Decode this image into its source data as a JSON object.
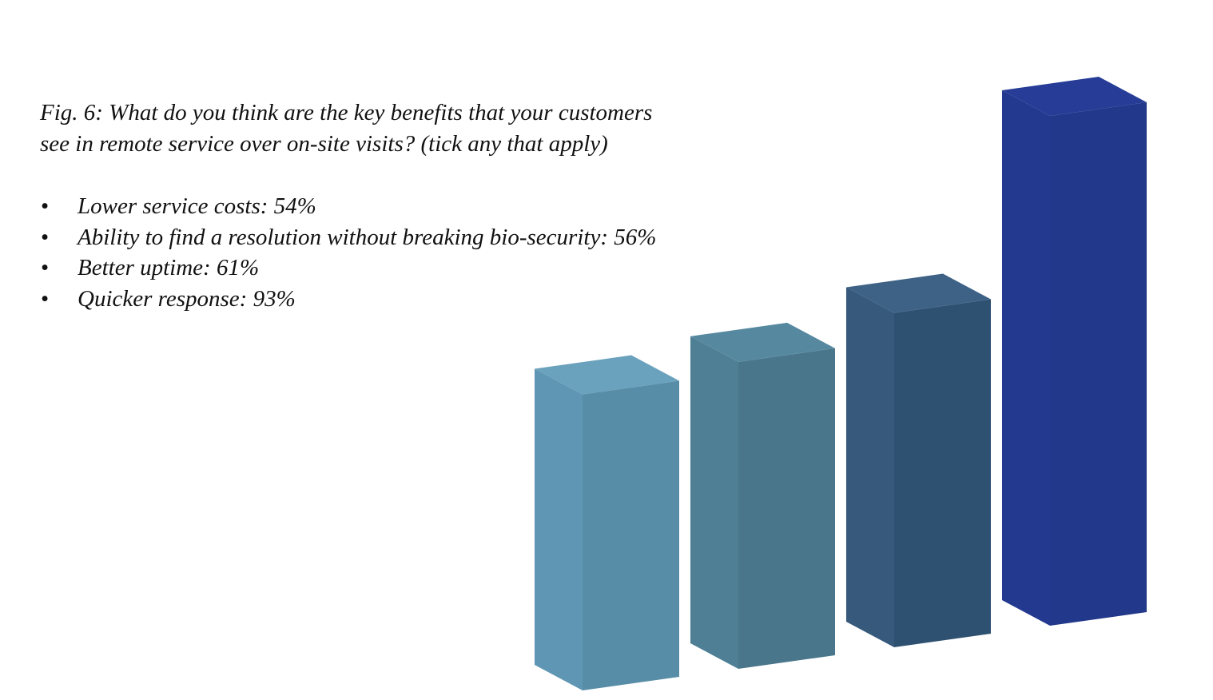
{
  "caption": {
    "line1": "Fig. 6: What do you think are the key benefits that your customers",
    "line2": "see in remote service over on-site visits? (tick any that apply)"
  },
  "bullets": [
    "Lower service costs: 54%",
    "Ability to find a resolution without breaking bio-security: 56%",
    "Better uptime: 61%",
    "Quicker response: 93%"
  ],
  "bullet_glyph": "•",
  "chart_data": {
    "type": "bar",
    "categories": [
      "Lower service costs",
      "Ability to find a resolution without breaking bio-security",
      "Better uptime",
      "Quicker response"
    ],
    "values": [
      54,
      56,
      61,
      93
    ],
    "unit": "%",
    "ylim": [
      0,
      100
    ],
    "grid": false,
    "legend": "none",
    "style": "3d",
    "colors": [
      {
        "front": "#588da8",
        "side": "#5f96b3",
        "top": "#6aa1bd"
      },
      {
        "front": "#49768b",
        "side": "#4e7f95",
        "top": "#5689a0"
      },
      {
        "front": "#2f5171",
        "side": "#36597c",
        "top": "#3d6286"
      },
      {
        "front": "#22388a",
        "side": "#233990",
        "top": "#263c96"
      }
    ]
  }
}
